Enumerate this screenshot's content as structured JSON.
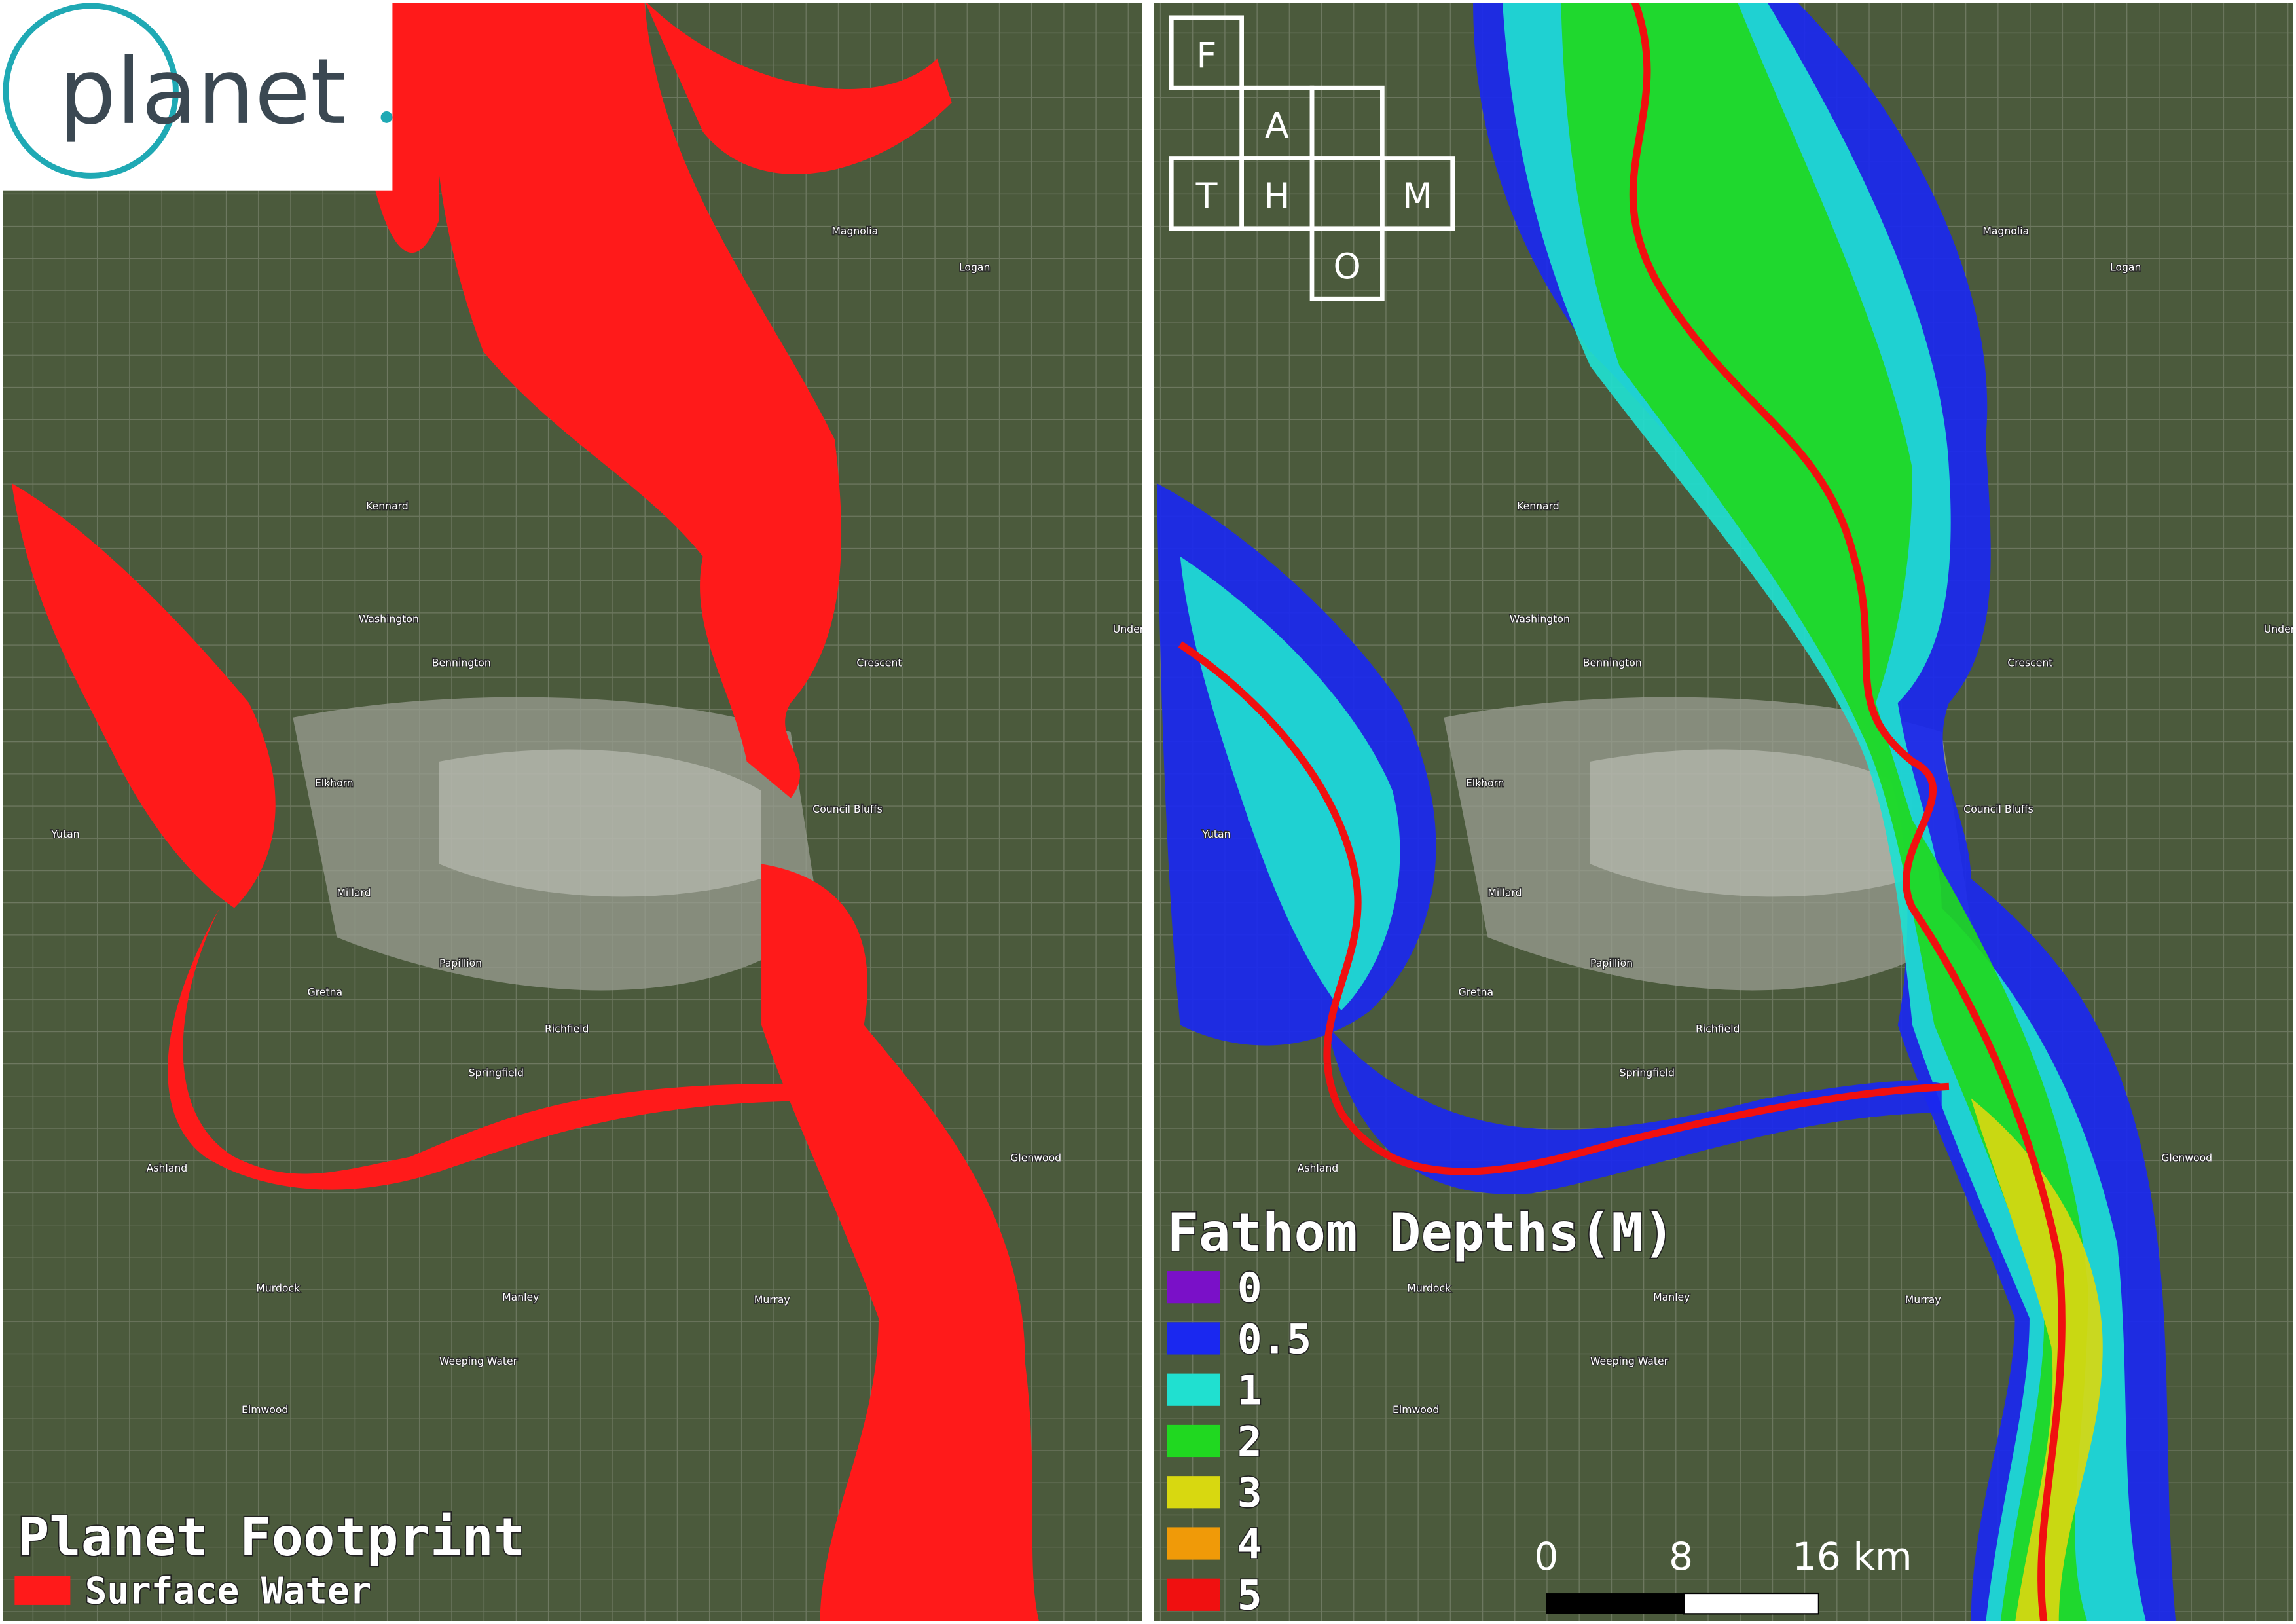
{
  "logo": {
    "text": "planet"
  },
  "fathom_logo": {
    "letters": [
      "F",
      "A",
      "T",
      "H",
      "M",
      "O"
    ]
  },
  "left_panel": {
    "title": "Planet Footprint",
    "legend": {
      "label": "Surface Water",
      "color": "#ff1a1a"
    }
  },
  "right_panel": {
    "title": "Fathom Depths(M)",
    "legend": [
      {
        "label": "0",
        "color": "#7a10c8"
      },
      {
        "label": "0.5",
        "color": "#1a28f0"
      },
      {
        "label": "1",
        "color": "#20e0d0"
      },
      {
        "label": "2",
        "color": "#20d820"
      },
      {
        "label": "3",
        "color": "#d8d810"
      },
      {
        "label": "4",
        "color": "#f09a08"
      },
      {
        "label": "5",
        "color": "#f01010"
      }
    ],
    "scale_bar": [
      "0",
      "8",
      "16 km"
    ]
  },
  "places": [
    "Council Bluffs",
    "Papillion",
    "Gretna",
    "Ashland",
    "Springfield",
    "Richfield",
    "Murray",
    "Manley",
    "Murdock",
    "Elmwood",
    "Weeping Water",
    "Washington",
    "Bennington",
    "Logan",
    "Magnolia",
    "Yutan",
    "Elkhorn",
    "Millard",
    "Glenwood",
    "Underwood",
    "Crescent",
    "Kennard"
  ]
}
